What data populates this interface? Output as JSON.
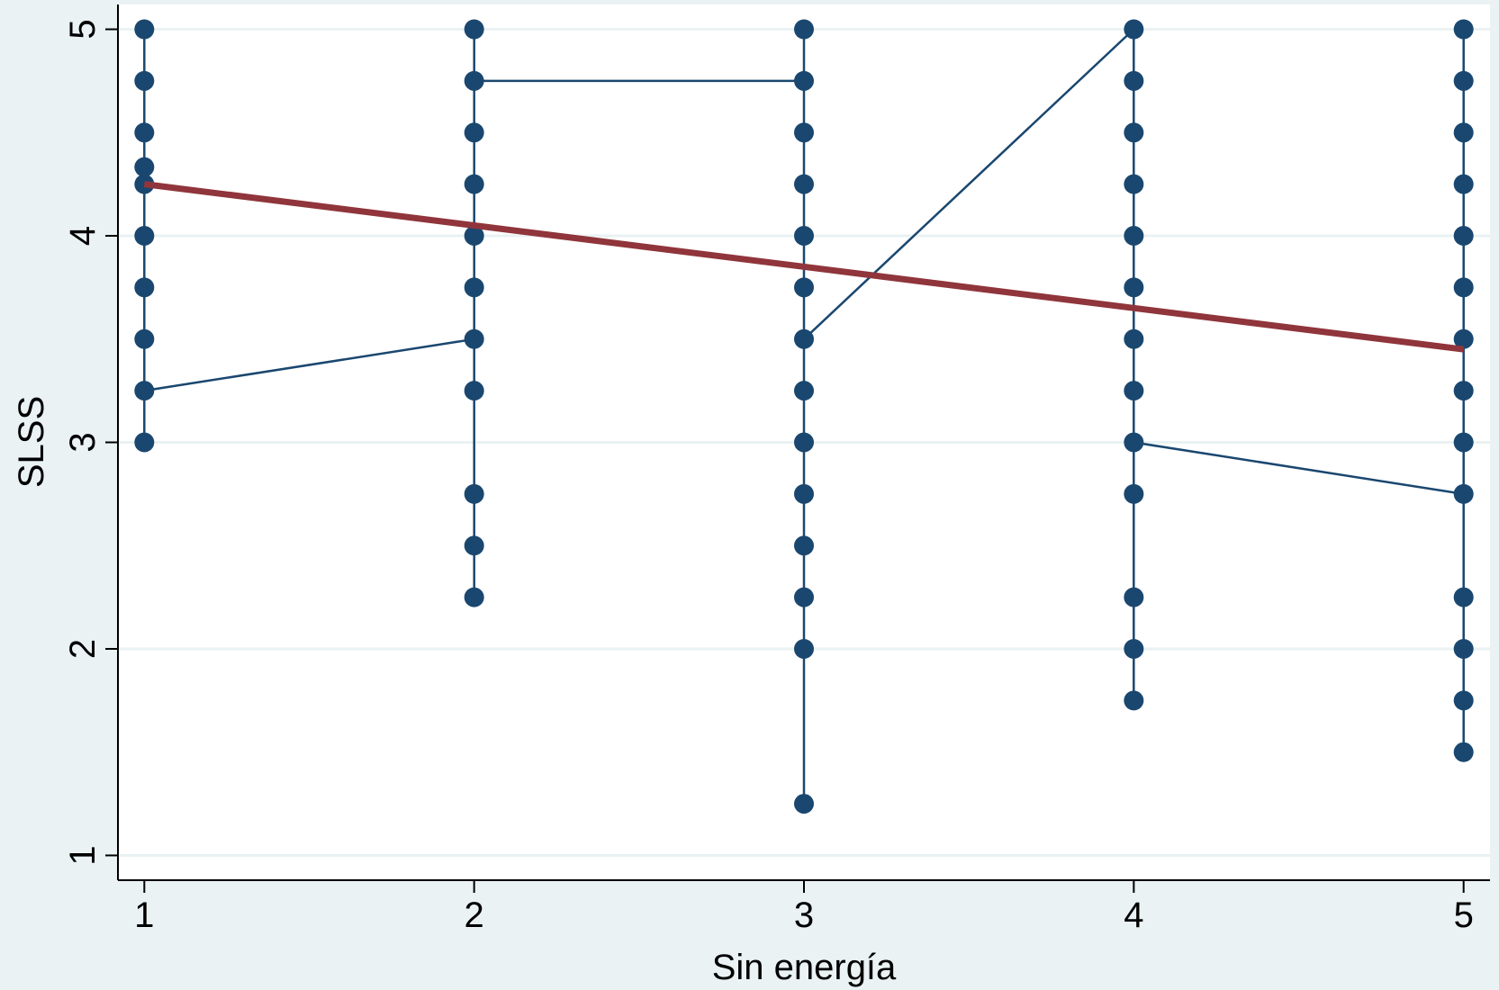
{
  "chart_data": {
    "type": "scatter",
    "xlabel": "Sin energía",
    "ylabel": "SLSS",
    "xlim": [
      0.92,
      5.08
    ],
    "ylim": [
      0.88,
      5.12
    ],
    "xticks": [
      1,
      2,
      3,
      4,
      5
    ],
    "yticks": [
      1,
      2,
      3,
      4,
      5
    ],
    "grid": true,
    "series": [
      {
        "color": "#1a476f",
        "connected": true,
        "x": [
          1,
          1,
          1,
          1,
          1,
          1,
          1,
          1,
          1,
          1,
          2,
          2,
          2,
          2,
          2,
          2,
          2,
          2,
          2,
          2,
          2,
          3,
          3,
          3,
          3,
          3,
          3,
          3,
          3,
          3,
          3,
          3,
          3,
          3,
          3,
          4,
          4,
          4,
          4,
          4,
          4,
          4,
          4,
          4,
          4,
          4,
          4,
          4,
          5,
          5,
          5,
          5,
          5,
          5,
          5,
          5,
          5,
          5,
          5,
          5,
          5,
          5
        ],
        "values": [
          5,
          4.75,
          4.5,
          4.333,
          4.25,
          4,
          3.75,
          3.5,
          3,
          3.25,
          3.5,
          3.25,
          2.75,
          2.5,
          2.25,
          3.75,
          4,
          4.25,
          4.5,
          5,
          4.75,
          4.75,
          5,
          4.5,
          4.25,
          4,
          3.75,
          3.25,
          3,
          2.75,
          2.5,
          2.25,
          2,
          1.25,
          3.5,
          5,
          4.75,
          4.5,
          4.25,
          4,
          3.75,
          3.5,
          3.25,
          2.75,
          2.25,
          2,
          1.75,
          3,
          2.75,
          5,
          4.75,
          4.5,
          4.25,
          4,
          3.75,
          3.5,
          3.25,
          3,
          2.25,
          2,
          1.75,
          1.5
        ]
      },
      {
        "color": "#90353b",
        "fit": true,
        "x": [
          1,
          5
        ],
        "values": [
          4.25,
          3.45
        ]
      }
    ]
  }
}
